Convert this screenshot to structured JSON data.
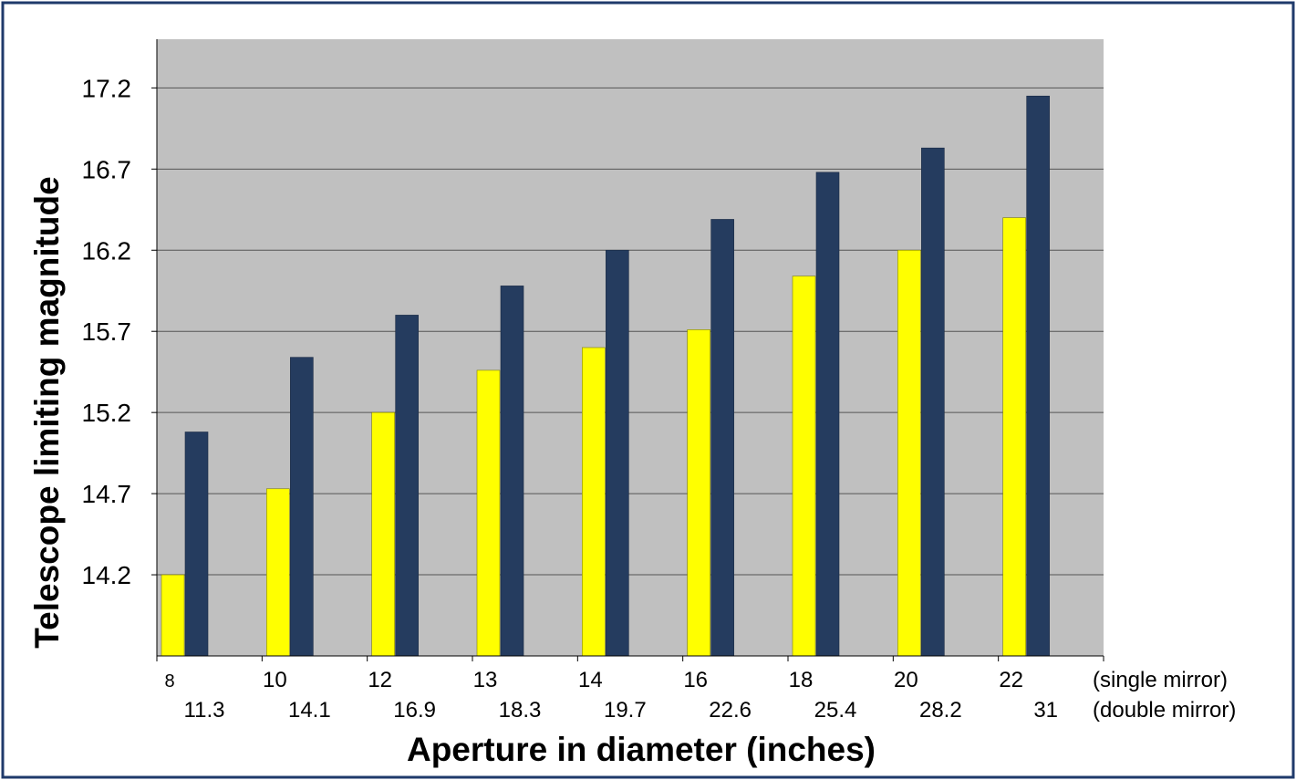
{
  "chart_data": {
    "type": "bar",
    "categories": [
      "8",
      "10",
      "12",
      "13",
      "14",
      "16",
      "18",
      "20",
      "22"
    ],
    "secondary_categories": [
      "11.3",
      "14.1",
      "16.9",
      "18.3",
      "19.7",
      "22.6",
      "25.4",
      "28.2",
      "31"
    ],
    "row_labels": {
      "primary": "(single mirror)",
      "secondary": "(double mirror)"
    },
    "series": [
      {
        "values": [
          14.2,
          14.73,
          15.2,
          15.46,
          15.6,
          15.71,
          16.04,
          16.2,
          16.4
        ],
        "color": "#ffff00"
      },
      {
        "values": [
          15.08,
          15.54,
          15.8,
          15.98,
          16.2,
          16.39,
          16.68,
          16.83,
          17.15
        ],
        "color": "#253c5f"
      }
    ],
    "xlabel": "Aperture in diameter (inches)",
    "ylabel": "Telescope limiting magnitude",
    "yticks": [
      "14.2",
      "14.7",
      "15.2",
      "15.7",
      "16.2",
      "16.7",
      "17.2"
    ],
    "ylim": [
      13.7,
      17.5
    ],
    "grid": true,
    "plot_background": "#c0c0c0",
    "frame_color": "#1f3a6b"
  }
}
